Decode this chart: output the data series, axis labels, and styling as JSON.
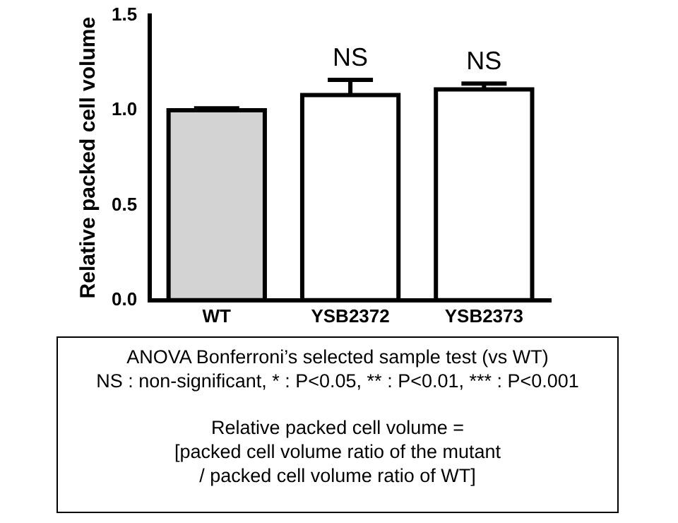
{
  "chart_data": {
    "type": "bar",
    "ylabel": "Relative packed cell volume",
    "categories": [
      "WT",
      "YSB2372",
      "YSB2373"
    ],
    "values": [
      1.0,
      1.08,
      1.11
    ],
    "errors": [
      0.01,
      0.08,
      0.03
    ],
    "colors": [
      "#d3d3d3",
      "#ffffff",
      "#ffffff"
    ],
    "ylim": [
      0,
      1.5
    ],
    "yticks": [
      {
        "value": 0,
        "label": "0.0"
      },
      {
        "value": 0.5,
        "label": "0.5"
      },
      {
        "value": 1,
        "label": "1.0"
      },
      {
        "value": 1.5,
        "label": "1.5"
      }
    ],
    "grid": false,
    "legend": false,
    "annotations": [
      {
        "text": "NS",
        "x": "YSB2372",
        "y": 1.16
      },
      {
        "text": "NS",
        "x": "YSB2373",
        "y": 1.14
      },
      "ANOVA Bonferroni’s selected sample test (vs WT)",
      "NS : non-significant, * : P<0.05, ** : P<0.01, *** : P<0.001",
      "Relative packed cell volume =",
      "[packed cell volume ratio of the mutant",
      "/ packed cell volume ratio of WT]"
    ]
  }
}
